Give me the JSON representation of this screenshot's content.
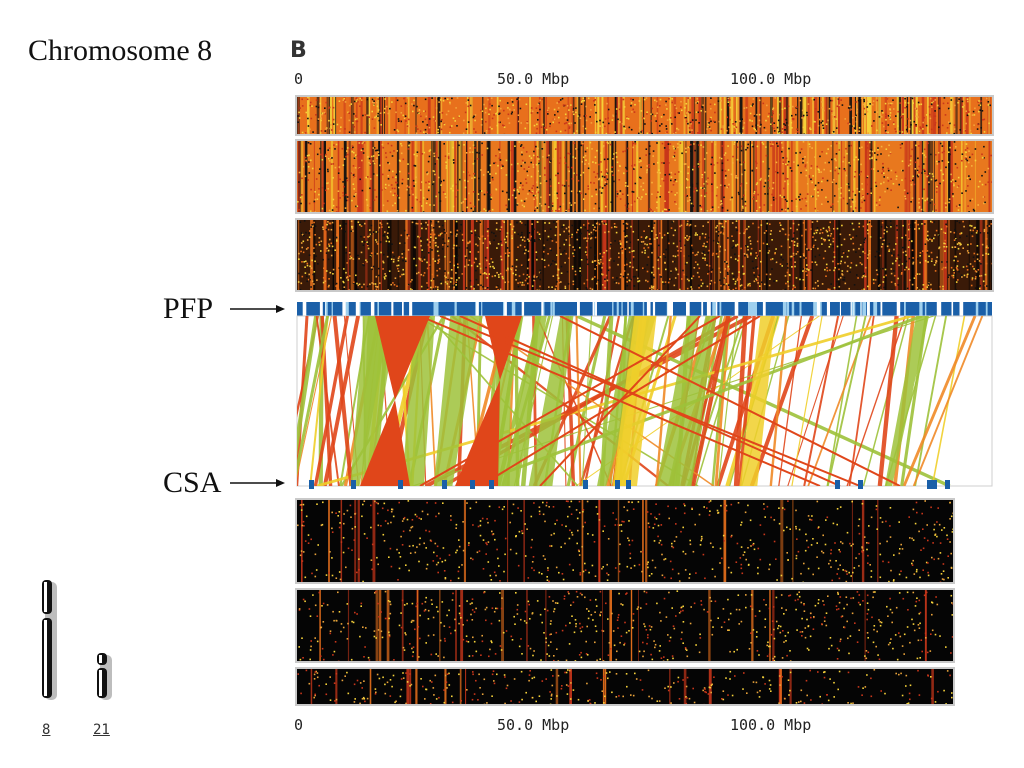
{
  "title": "Chromosome 8",
  "panel_letter": "B",
  "top_scale": [
    "0",
    "50.0 Mbp",
    "100.0 Mbp"
  ],
  "bottom_scale": [
    "0",
    "50.0 Mbp",
    "100.0 Mbp"
  ],
  "pfp_label": "PFP",
  "csa_label": "CSA",
  "chromosome_icons": [
    "8",
    "21"
  ],
  "colors": {
    "track_top_bg": "#e8701c",
    "track_dark_bg": "#0a0a0a",
    "pfp_bar": "#1a5fa8",
    "red": "#e0461a",
    "green": "#9ec23a",
    "yellow": "#f0cf2a",
    "orange": "#f08a28"
  }
}
